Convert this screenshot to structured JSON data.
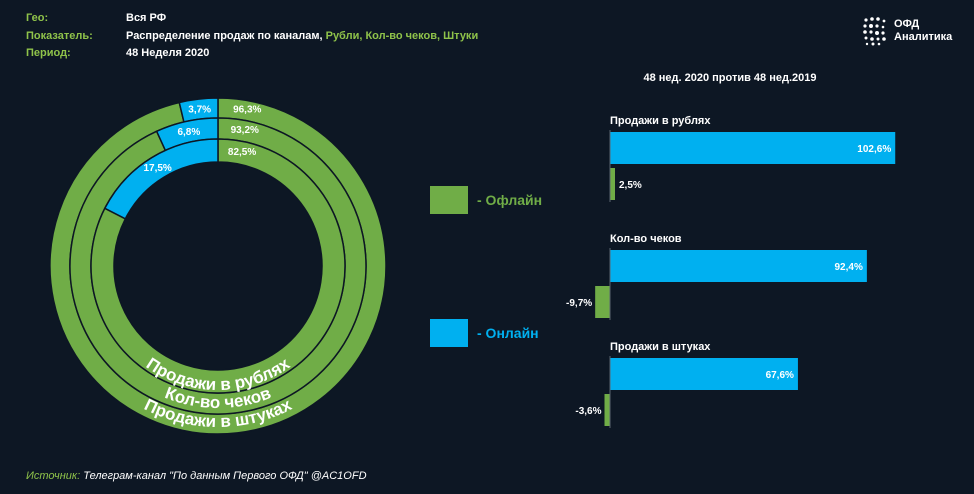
{
  "header": {
    "rows": [
      {
        "label": "Гео:",
        "value": "Вся РФ",
        "value_suffix": ""
      },
      {
        "label": "Показатель:",
        "value": "Распределение продаж по каналам,",
        "value_suffix": " Рубли, Кол-во чеков, Штуки"
      },
      {
        "label": "Период:",
        "value": "48 Неделя 2020",
        "value_suffix": ""
      }
    ]
  },
  "logo": {
    "line1": "ОФД",
    "line2": "Аналитика"
  },
  "colors": {
    "offline": "#70ad47",
    "online": "#00b0f0",
    "background": "#0d1724",
    "accent_text": "#8fc34a"
  },
  "legend": {
    "offline": "- Офлайн",
    "online": "- Онлайн"
  },
  "source": {
    "label": "Источник:",
    "text": " Телеграм-канал \"По данным Первого ОФД\" @AC1OFD"
  },
  "chart_data": [
    {
      "type": "pie",
      "variant": "nested-donut",
      "rings": [
        {
          "name": "Продажи в штуках",
          "offline": 96.3,
          "online": 3.7,
          "offline_label": "96,3%",
          "online_label": "3,7%"
        },
        {
          "name": "Кол-во чеков",
          "offline": 93.2,
          "online": 6.8,
          "offline_label": "93,2%",
          "online_label": "6,8%"
        },
        {
          "name": "Продажи в рублях",
          "offline": 82.5,
          "online": 17.5,
          "offline_label": "82,5%",
          "online_label": "17,5%"
        }
      ],
      "legend": [
        "Офлайн",
        "Онлайн"
      ]
    },
    {
      "type": "bar",
      "orientation": "horizontal",
      "title": "48 нед. 2020 против 48 нед.2019",
      "groups": [
        {
          "name": "Продажи в рублях",
          "online": 102.6,
          "offline": 2.5,
          "online_label": "102,6%",
          "offline_label": "2,5%"
        },
        {
          "name": "Кол-во чеков",
          "online": 92.4,
          "offline": -9.7,
          "online_label": "92,4%",
          "offline_label": "-9,7%"
        },
        {
          "name": "Продажи в штуках",
          "online": 67.6,
          "offline": -3.6,
          "online_label": "67,6%",
          "offline_label": "-3,6%"
        }
      ]
    }
  ]
}
